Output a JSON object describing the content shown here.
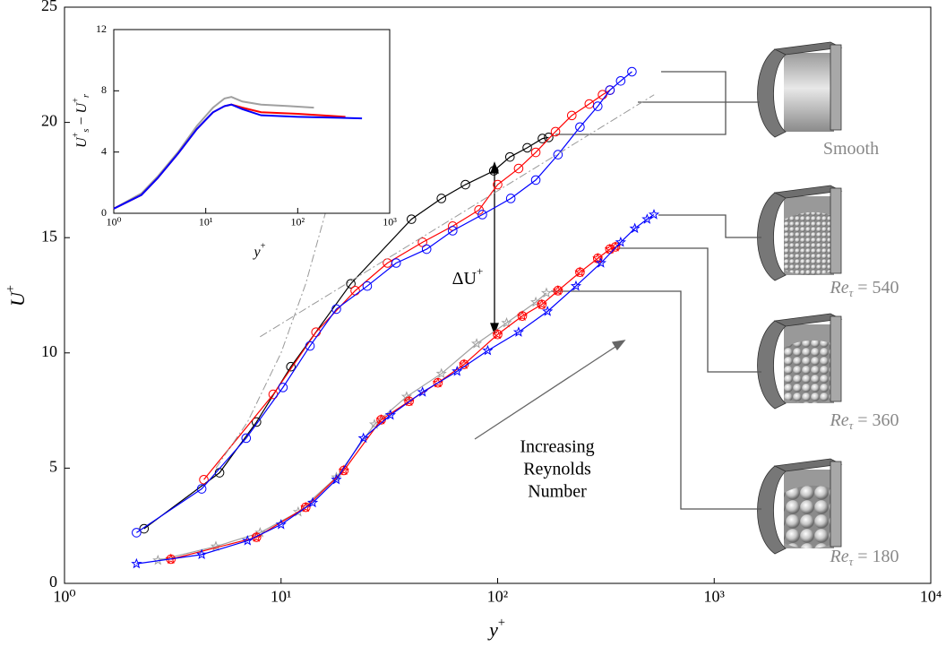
{
  "chart_data": [
    {
      "type": "line",
      "xscale": "log",
      "xlim": [
        1,
        10000
      ],
      "xticks": [
        {
          "value": 1,
          "label": "10⁰"
        },
        {
          "value": 10,
          "label": "10¹"
        },
        {
          "value": 100,
          "label": "10²"
        },
        {
          "value": 1000,
          "label": "10³"
        },
        {
          "value": 10000,
          "label": "10⁴"
        }
      ],
      "ylim": [
        0,
        25
      ],
      "yticks": [
        0,
        5,
        10,
        15,
        20,
        25
      ],
      "xlabel": [
        {
          "text": "y",
          "italic": true
        },
        {
          "text": "+",
          "shift": "sup"
        }
      ],
      "ylabel": [
        {
          "text": "U",
          "italic": true
        },
        {
          "text": "+",
          "shift": "sup"
        }
      ],
      "series": [
        {
          "color": "#000000",
          "marker": "circle",
          "style": "solid",
          "x": [
            2.33,
            5.2,
            7.7,
            11.1,
            21,
            40,
            55,
            71,
            96,
            114,
            137,
            161,
            172
          ],
          "values": [
            2.37,
            4.8,
            7.0,
            9.4,
            13.0,
            15.8,
            16.7,
            17.3,
            17.9,
            18.5,
            18.9,
            19.3,
            19.35
          ]
        },
        {
          "color": "#ff0000",
          "marker": "circle",
          "style": "solid",
          "x": [
            4.4,
            9.2,
            14.5,
            22,
            31,
            45,
            62,
            82,
            100,
            125,
            150,
            185,
            220,
            265,
            305,
            330
          ],
          "values": [
            4.5,
            8.2,
            10.9,
            12.7,
            13.9,
            14.8,
            15.5,
            16.2,
            17.3,
            18.0,
            18.7,
            19.6,
            20.3,
            20.8,
            21.2,
            21.4
          ]
        },
        {
          "color": "#0000ff",
          "marker": "circle",
          "style": "solid",
          "x": [
            2.15,
            4.3,
            6.9,
            10.2,
            13.6,
            18,
            25,
            34,
            47,
            62,
            85,
            115,
            150,
            190,
            240,
            290,
            330,
            370,
            417
          ],
          "values": [
            2.2,
            4.1,
            6.3,
            8.5,
            10.3,
            11.9,
            12.9,
            13.9,
            14.5,
            15.3,
            16.0,
            16.7,
            17.5,
            18.6,
            19.8,
            20.7,
            21.4,
            21.8,
            22.2
          ]
        },
        {
          "color": "#a0a0a0",
          "marker": "star",
          "style": "solid",
          "x": [
            2.7,
            5,
            8,
            12,
            18,
            27,
            38,
            55,
            80,
            110,
            150,
            168
          ],
          "values": [
            1.0,
            1.6,
            2.2,
            3.1,
            4.6,
            6.9,
            8.1,
            9.1,
            10.4,
            11.3,
            12.2,
            12.6
          ]
        },
        {
          "color": "#ff0000",
          "marker": "circle-star",
          "style": "solid",
          "x": [
            3.1,
            7.7,
            13,
            19.5,
            29,
            39,
            53,
            70,
            100,
            130,
            160,
            190,
            240,
            290,
            330,
            350
          ],
          "values": [
            1.05,
            2.0,
            3.3,
            4.9,
            7.1,
            7.9,
            8.7,
            9.5,
            10.8,
            11.6,
            12.1,
            12.7,
            13.5,
            14.1,
            14.5,
            14.6
          ]
        },
        {
          "color": "#0000ff",
          "marker": "star",
          "style": "solid",
          "x": [
            2.15,
            4.3,
            7,
            10,
            14,
            18,
            24,
            32,
            45,
            65,
            90,
            125,
            170,
            230,
            300,
            370,
            430,
            490,
            527
          ],
          "values": [
            0.85,
            1.25,
            1.85,
            2.55,
            3.5,
            4.5,
            6.3,
            7.3,
            8.3,
            9.2,
            10.1,
            10.9,
            11.8,
            12.9,
            13.9,
            14.8,
            15.4,
            15.8,
            16.0
          ]
        },
        {
          "color": "#999999",
          "marker": null,
          "style": "dashdot",
          "x": [
            5,
            7,
            10,
            13,
            16.5
          ],
          "values": [
            5,
            7,
            10,
            13,
            16.5
          ]
        },
        {
          "color": "#999999",
          "marker": null,
          "style": "dashdot",
          "x": [
            8,
            528
          ],
          "values": [
            10.7,
            21.2
          ]
        }
      ],
      "annotations": {
        "delta": [
          {
            "text": "ΔU",
            "italic": false
          },
          {
            "text": "+",
            "shift": "sup"
          }
        ],
        "trend": [
          "Increasing",
          "Reynolds",
          "Number"
        ],
        "pipes": [
          [
            {
              "text": "Smooth"
            }
          ],
          [
            {
              "text": "Re",
              "italic": true
            },
            {
              "text": "τ",
              "shift": "sub",
              "italic": true
            },
            {
              "text": " = 540"
            }
          ],
          [
            {
              "text": "Re",
              "italic": true
            },
            {
              "text": "τ",
              "shift": "sub",
              "italic": true
            },
            {
              "text": " = 360"
            }
          ],
          [
            {
              "text": "Re",
              "italic": true
            },
            {
              "text": "τ",
              "shift": "sub",
              "italic": true
            },
            {
              "text": " = 180"
            }
          ]
        ]
      }
    },
    {
      "type": "line",
      "xscale": "log",
      "xlim": [
        1,
        1000
      ],
      "xticks": [
        {
          "value": 1,
          "label": "10⁰"
        },
        {
          "value": 10,
          "label": "10¹"
        },
        {
          "value": 100,
          "label": "10²"
        },
        {
          "value": 1000,
          "label": "10³"
        }
      ],
      "ylim": [
        0,
        12
      ],
      "yticks": [
        0,
        4,
        8,
        12
      ],
      "xlabel": [
        {
          "text": "y",
          "italic": true
        },
        {
          "text": "+",
          "shift": "sup"
        }
      ],
      "ylabel": [
        {
          "text": "U",
          "italic": true
        },
        {
          "text": "+",
          "shift": "sup"
        },
        {
          "text": "s",
          "shift": "sub",
          "italic": true
        },
        {
          "text": " − "
        },
        {
          "text": "U",
          "italic": true
        },
        {
          "text": "+",
          "shift": "sup"
        },
        {
          "text": "r",
          "shift": "sub",
          "italic": true
        }
      ],
      "series": [
        {
          "color": "#a0a0a0",
          "marker": null,
          "style": "solid",
          "x": [
            1,
            2,
            3,
            5,
            8,
            12,
            16,
            19,
            25,
            40,
            80,
            150
          ],
          "values": [
            0.3,
            1.3,
            2.4,
            4.0,
            5.7,
            6.9,
            7.5,
            7.6,
            7.3,
            7.1,
            7.0,
            6.9
          ]
        },
        {
          "color": "#ff0000",
          "marker": null,
          "style": "solid",
          "x": [
            1,
            2,
            3,
            5,
            8,
            12,
            16,
            19,
            25,
            40,
            100,
            330
          ],
          "values": [
            0.3,
            1.2,
            2.3,
            3.9,
            5.5,
            6.6,
            7.0,
            7.1,
            6.9,
            6.6,
            6.5,
            6.3
          ]
        },
        {
          "color": "#0000ff",
          "marker": null,
          "style": "solid",
          "x": [
            1,
            2,
            3,
            5,
            8,
            12,
            16,
            19,
            25,
            40,
            100,
            500
          ],
          "values": [
            0.3,
            1.2,
            2.3,
            3.9,
            5.5,
            6.6,
            7.0,
            7.1,
            6.8,
            6.4,
            6.3,
            6.2
          ]
        }
      ]
    }
  ]
}
